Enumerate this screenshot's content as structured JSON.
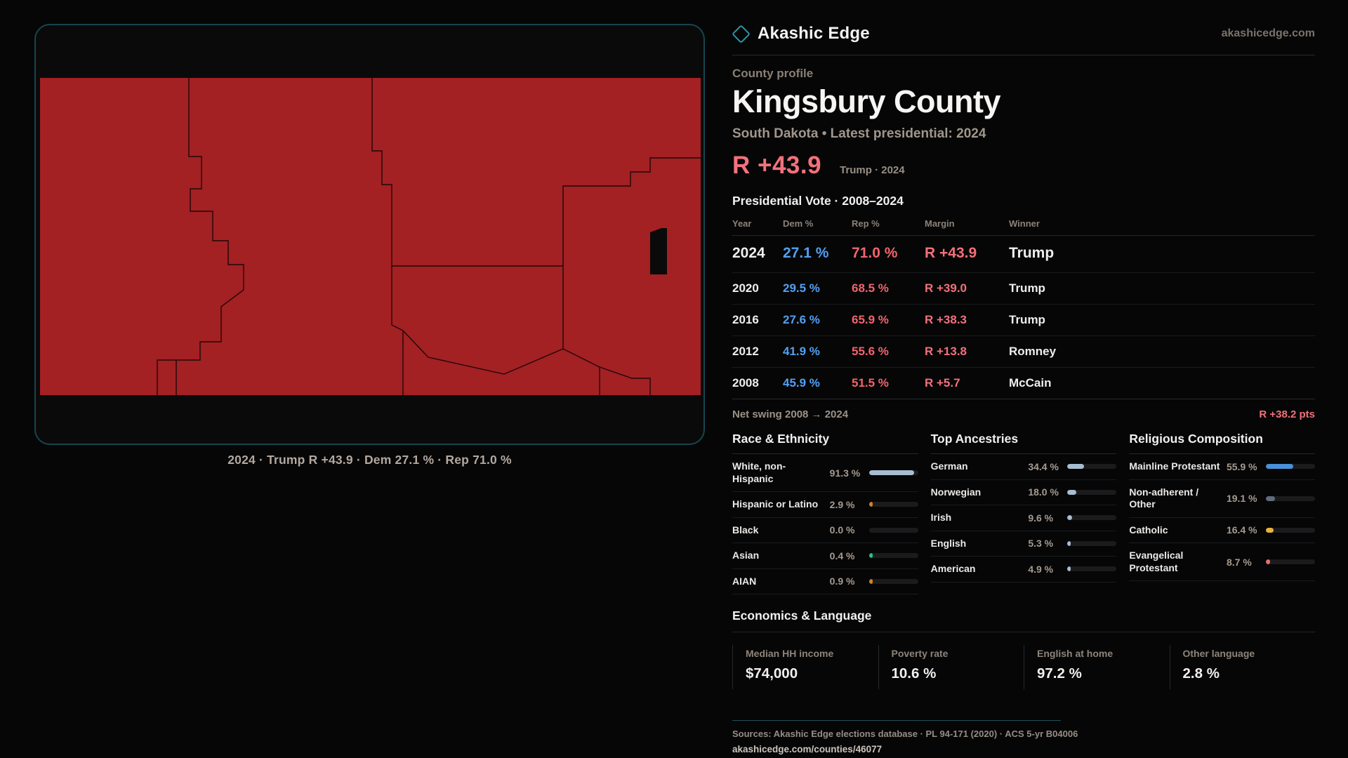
{
  "brand": {
    "name": "Akashic Edge",
    "site": "akashicedge.com"
  },
  "profile": {
    "kicker": "County profile",
    "title": "Kingsbury County",
    "subtitle": "South Dakota • Latest presidential: 2024",
    "headline_margin": "R +43.9",
    "headline_context": "Trump · 2024"
  },
  "map": {
    "caption": "2024 · Trump R +43.9 · Dem 27.1 % · Rep 71.0 %",
    "fill_color": "#a32023",
    "border_color": "#17454e",
    "background_color": "#0a0a0b"
  },
  "vote_table": {
    "title": "Presidential Vote · 2008–2024",
    "columns": [
      "Year",
      "Dem %",
      "Rep %",
      "Margin",
      "Winner"
    ],
    "rows": [
      {
        "year": "2024",
        "dem": "27.1 %",
        "rep": "71.0 %",
        "margin": "R +43.9",
        "winner": "Trump"
      },
      {
        "year": "2020",
        "dem": "29.5 %",
        "rep": "68.5 %",
        "margin": "R +39.0",
        "winner": "Trump"
      },
      {
        "year": "2016",
        "dem": "27.6 %",
        "rep": "65.9 %",
        "margin": "R +38.3",
        "winner": "Trump"
      },
      {
        "year": "2012",
        "dem": "41.9 %",
        "rep": "55.6 %",
        "margin": "R +13.8",
        "winner": "Romney"
      },
      {
        "year": "2008",
        "dem": "45.9 %",
        "rep": "51.5 %",
        "margin": "R +5.7",
        "winner": "McCain"
      }
    ],
    "net_swing_label": "Net swing 2008 → 2024",
    "net_swing_value": "R +38.2 pts"
  },
  "race": {
    "title": "Race & Ethnicity",
    "rows": [
      {
        "label": "White, non-Hispanic",
        "value": "91.3 %",
        "pct": 91.3,
        "color": "#a9bdd1"
      },
      {
        "label": "Hispanic or Latino",
        "value": "2.9 %",
        "pct": 2.9,
        "color": "#d08426"
      },
      {
        "label": "Black",
        "value": "0.0 %",
        "pct": 0,
        "color": "#a9bdd1"
      },
      {
        "label": "Asian",
        "value": "0.4 %",
        "pct": 0.4,
        "color": "#2fbd8f"
      },
      {
        "label": "AIAN",
        "value": "0.9 %",
        "pct": 0.9,
        "color": "#d08426"
      }
    ]
  },
  "ancestries": {
    "title": "Top Ancestries",
    "rows": [
      {
        "label": "German",
        "value": "34.4 %",
        "pct": 34.4,
        "color": "#a9bdd1"
      },
      {
        "label": "Norwegian",
        "value": "18.0 %",
        "pct": 18.0,
        "color": "#a9bdd1"
      },
      {
        "label": "Irish",
        "value": "9.6 %",
        "pct": 9.6,
        "color": "#a9bdd1"
      },
      {
        "label": "English",
        "value": "5.3 %",
        "pct": 5.3,
        "color": "#a9bdd1"
      },
      {
        "label": "American",
        "value": "4.9 %",
        "pct": 4.9,
        "color": "#a9bdd1"
      }
    ]
  },
  "religion": {
    "title": "Religious Composition",
    "rows": [
      {
        "label": "Mainline Protestant",
        "value": "55.9 %",
        "pct": 55.9,
        "color": "#4a90d8"
      },
      {
        "label": "Non-adherent / Other",
        "value": "19.1 %",
        "pct": 19.1,
        "color": "#5f6c7c"
      },
      {
        "label": "Catholic",
        "value": "16.4 %",
        "pct": 16.4,
        "color": "#e7b33c"
      },
      {
        "label": "Evangelical Protestant",
        "value": "8.7 %",
        "pct": 8.7,
        "color": "#e27070"
      }
    ]
  },
  "economics": {
    "title": "Economics & Language",
    "stats": [
      {
        "label": "Median HH income",
        "value": "$74,000"
      },
      {
        "label": "Poverty rate",
        "value": "10.6 %"
      },
      {
        "label": "English at home",
        "value": "97.2 %"
      },
      {
        "label": "Other language",
        "value": "2.8 %"
      }
    ]
  },
  "footer": {
    "sources": "Sources: Akashic Edge elections database · PL 94-171 (2020) · ACS 5-yr B04006",
    "url": "akashicedge.com/counties/46077"
  },
  "colors": {
    "accent_teal": "#2d93a3",
    "dem_blue": "#52a0f2",
    "rep_red": "#f2646c",
    "margin_salmon": "#f3707a"
  }
}
